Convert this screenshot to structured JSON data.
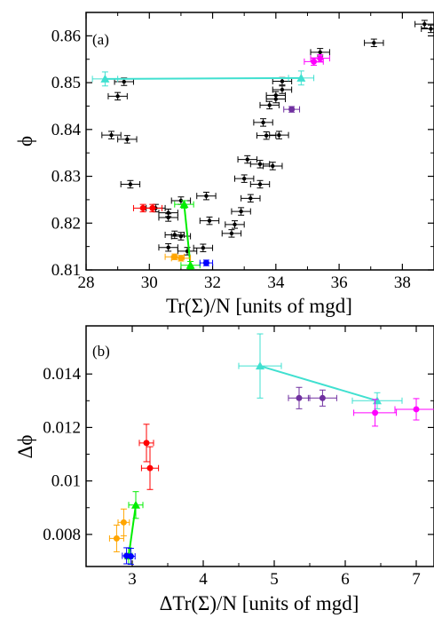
{
  "chart_data": [
    {
      "type": "scatter",
      "panel_label": "(a)",
      "xlabel": "Tr(Σ)/N [units of mgd]",
      "ylabel": "ϕ",
      "xlim": [
        28,
        39
      ],
      "ylim": [
        0.81,
        0.865
      ],
      "x_ticks": [
        "28",
        "30",
        "32",
        "34",
        "36",
        "38"
      ],
      "y_ticks": [
        "0.81",
        "0.82",
        "0.83",
        "0.84",
        "0.85",
        "0.86"
      ],
      "x_tick_values": [
        28,
        30,
        32,
        34,
        36,
        38
      ],
      "y_tick_values": [
        0.81,
        0.82,
        0.83,
        0.84,
        0.85,
        0.86
      ],
      "grid": false,
      "series": [
        {
          "color": "#000000",
          "marker": "circle",
          "line": false,
          "xerr": 0.3,
          "yerr": 0.0008,
          "points": [
            [
              28.8,
              0.8388
            ],
            [
              29.0,
              0.8471
            ],
            [
              29.2,
              0.8502
            ],
            [
              29.3,
              0.8379
            ],
            [
              29.4,
              0.8283
            ],
            [
              30.2,
              0.8232
            ],
            [
              30.6,
              0.8222
            ],
            [
              30.6,
              0.8212
            ],
            [
              30.6,
              0.8148
            ],
            [
              30.8,
              0.8175
            ],
            [
              31.0,
              0.8172
            ],
            [
              31.0,
              0.8248
            ],
            [
              31.2,
              0.814
            ],
            [
              31.7,
              0.8147
            ],
            [
              31.8,
              0.8258
            ],
            [
              31.9,
              0.8205
            ],
            [
              32.6,
              0.8178
            ],
            [
              32.7,
              0.8197
            ],
            [
              32.9,
              0.8225
            ],
            [
              33.0,
              0.8295
            ],
            [
              33.1,
              0.8336
            ],
            [
              33.2,
              0.8253
            ],
            [
              33.5,
              0.8326
            ],
            [
              33.5,
              0.8283
            ],
            [
              33.6,
              0.8415
            ],
            [
              33.7,
              0.8387
            ],
            [
              33.8,
              0.8452
            ],
            [
              33.9,
              0.8322
            ],
            [
              34.0,
              0.8465
            ],
            [
              34.0,
              0.8473
            ],
            [
              34.1,
              0.8388
            ],
            [
              34.2,
              0.8485
            ],
            [
              34.2,
              0.8503
            ],
            [
              35.4,
              0.8565
            ],
            [
              37.1,
              0.8585
            ],
            [
              38.7,
              0.8625
            ],
            [
              38.9,
              0.8615
            ]
          ]
        },
        {
          "color": "#40e0d0",
          "marker": "triangle",
          "line": true,
          "xerr": 0.4,
          "yerr": 0.0015,
          "points": [
            [
              28.6,
              0.8508
            ],
            [
              34.8,
              0.851
            ]
          ]
        },
        {
          "color": "#ff00ff",
          "marker": "circle",
          "line": false,
          "xerr": 0.3,
          "yerr": 0.0008,
          "points": [
            [
              35.2,
              0.8545
            ],
            [
              35.4,
              0.8552
            ]
          ]
        },
        {
          "color": "#7030a0",
          "marker": "circle",
          "line": false,
          "xerr": 0.25,
          "yerr": 0.0006,
          "points": [
            [
              34.5,
              0.8443
            ]
          ]
        },
        {
          "color": "#ff0000",
          "marker": "circle",
          "line": false,
          "xerr": 0.3,
          "yerr": 0.0008,
          "points": [
            [
              29.8,
              0.8232
            ],
            [
              30.1,
              0.8232
            ]
          ]
        },
        {
          "color": "#00ee00",
          "marker": "triangle",
          "line": true,
          "xerr": 0.3,
          "yerr": 0.0008,
          "points": [
            [
              31.1,
              0.824
            ],
            [
              31.3,
              0.811
            ]
          ]
        },
        {
          "color": "#ffa500",
          "marker": "circle",
          "line": false,
          "xerr": 0.3,
          "yerr": 0.0006,
          "points": [
            [
              30.8,
              0.8128
            ],
            [
              31.0,
              0.8125
            ]
          ]
        },
        {
          "color": "#0000ff",
          "marker": "circle",
          "line": false,
          "xerr": 0.2,
          "yerr": 0.0006,
          "points": [
            [
              31.8,
              0.8115
            ]
          ]
        }
      ]
    },
    {
      "type": "scatter",
      "panel_label": "(b)",
      "xlabel": "ΔTr(Σ)/N  [units of mgd]",
      "ylabel": "Δϕ",
      "xlim": [
        2.35,
        7.25
      ],
      "ylim": [
        0.0068,
        0.0158
      ],
      "x_ticks": [
        "3",
        "4",
        "5",
        "6",
        "7"
      ],
      "y_ticks": [
        "0.008",
        "0.01",
        "0.012",
        "0.014"
      ],
      "x_tick_values": [
        3,
        4,
        5,
        6,
        7
      ],
      "y_tick_values": [
        0.008,
        0.01,
        0.012,
        0.014
      ],
      "grid": false,
      "series": [
        {
          "color": "#40e0d0",
          "marker": "triangle",
          "line": true,
          "points": [
            [
              4.8,
              0.0143,
              0.3,
              0.0012
            ],
            [
              6.45,
              0.013,
              0.35,
              0.0003
            ]
          ]
        },
        {
          "color": "#ff00ff",
          "marker": "circle",
          "line": false,
          "points": [
            [
              6.42,
              0.01255,
              0.3,
              0.0005
            ],
            [
              7.0,
              0.01268,
              0.3,
              0.0004
            ]
          ]
        },
        {
          "color": "#7030a0",
          "marker": "circle",
          "line": false,
          "points": [
            [
              5.35,
              0.0131,
              0.15,
              0.0004
            ],
            [
              5.68,
              0.0131,
              0.2,
              0.0003
            ]
          ]
        },
        {
          "color": "#ff0000",
          "marker": "circle",
          "line": false,
          "points": [
            [
              3.2,
              0.01142,
              0.1,
              0.0007
            ],
            [
              3.25,
              0.01048,
              0.12,
              0.0008
            ]
          ]
        },
        {
          "color": "#00ee00",
          "marker": "triangle",
          "line": true,
          "points": [
            [
              3.05,
              0.0091,
              0.1,
              0.0005
            ],
            [
              2.95,
              0.0072,
              0.05,
              0.0003
            ]
          ]
        },
        {
          "color": "#ffa500",
          "marker": "circle",
          "line": false,
          "points": [
            [
              2.78,
              0.00785,
              0.1,
              0.0005
            ],
            [
              2.88,
              0.00845,
              0.08,
              0.0005
            ]
          ]
        },
        {
          "color": "#0000ff",
          "marker": "circle",
          "line": false,
          "points": [
            [
              2.92,
              0.0072,
              0.06,
              0.0003
            ],
            [
              2.98,
              0.00718,
              0.06,
              0.0003
            ]
          ]
        }
      ]
    }
  ]
}
